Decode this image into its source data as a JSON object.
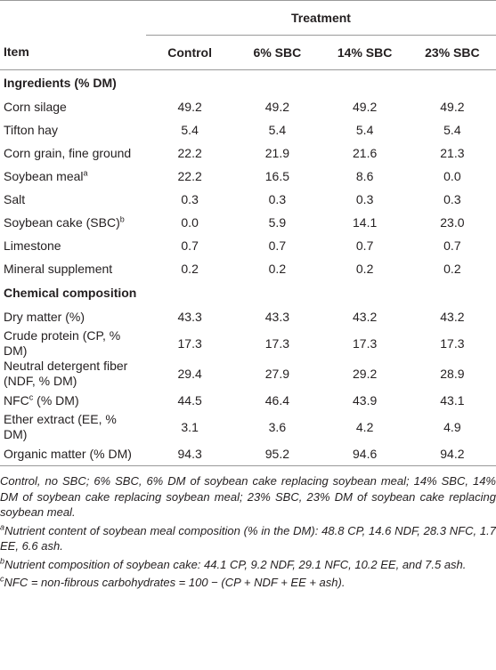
{
  "table": {
    "group_header": "Treatment",
    "columns": [
      "Item",
      "Control",
      "6% SBC",
      "14% SBC",
      "23% SBC"
    ],
    "sections": [
      {
        "title": "Ingredients (% DM)",
        "rows": [
          {
            "item": "Corn silage",
            "values": [
              "49.2",
              "49.2",
              "49.2",
              "49.2"
            ]
          },
          {
            "item": "Tifton hay",
            "values": [
              "5.4",
              "5.4",
              "5.4",
              "5.4"
            ]
          },
          {
            "item": "Corn grain, fine ground",
            "values": [
              "22.2",
              "21.9",
              "21.6",
              "21.3"
            ]
          },
          {
            "item": "Soybean meal",
            "sup": "a",
            "values": [
              "22.2",
              "16.5",
              "8.6",
              "0.0"
            ]
          },
          {
            "item": "Salt",
            "values": [
              "0.3",
              "0.3",
              "0.3",
              "0.3"
            ]
          },
          {
            "item": "Soybean cake (SBC)",
            "sup": "b",
            "values": [
              "0.0",
              "5.9",
              "14.1",
              "23.0"
            ]
          },
          {
            "item": "Limestone",
            "values": [
              "0.7",
              "0.7",
              "0.7",
              "0.7"
            ]
          },
          {
            "item": "Mineral supplement",
            "values": [
              "0.2",
              "0.2",
              "0.2",
              "0.2"
            ]
          }
        ]
      },
      {
        "title": "Chemical composition",
        "rows": [
          {
            "item": "Dry matter (%)",
            "values": [
              "43.3",
              "43.3",
              "43.2",
              "43.2"
            ]
          },
          {
            "item": "Crude protein (CP, % DM)",
            "values": [
              "17.3",
              "17.3",
              "17.3",
              "17.3"
            ]
          },
          {
            "item": "Neutral detergent fiber (NDF, % DM)",
            "values": [
              "29.4",
              "27.9",
              "29.2",
              "28.9"
            ]
          },
          {
            "item": "NFC",
            "sup": "c",
            "item_rest": " (% DM)",
            "values": [
              "44.5",
              "46.4",
              "43.9",
              "43.1"
            ]
          },
          {
            "item": "Ether extract (EE, % DM)",
            "values": [
              "3.1",
              "3.6",
              "4.2",
              "4.9"
            ]
          },
          {
            "item": "Organic matter (% DM)",
            "values": [
              "94.3",
              "95.2",
              "94.6",
              "94.2"
            ]
          }
        ]
      }
    ]
  },
  "footnotes": [
    {
      "text": "Control, no SBC; 6% SBC, 6% DM of soybean cake replacing soybean meal; 14% SBC, 14% DM of soybean cake replacing soybean meal; 23% SBC, 23% DM of soybean cake replacing soybean meal."
    },
    {
      "mark": "a",
      "text": "Nutrient content of soybean meal composition (% in the DM): 48.8 CP, 14.6 NDF, 28.3 NFC, 1.7 EE, 6.6 ash."
    },
    {
      "mark": "b",
      "text": "Nutrient composition of soybean cake: 44.1 CP, 9.2 NDF, 29.1 NFC, 10.2 EE, and 7.5 ash."
    },
    {
      "mark": "c",
      "text": "NFC = non-fibrous carbohydrates = 100 − (CP + NDF + EE + ash)."
    }
  ]
}
